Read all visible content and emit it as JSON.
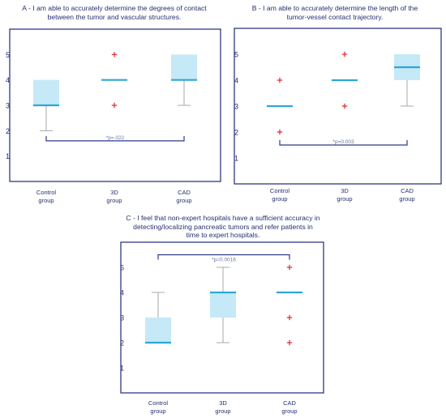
{
  "chart_data": [
    {
      "panel": "A",
      "type": "box",
      "title_lines": [
        "A - I am able to accurately determine the degrees of contact",
        "between the tumor and vascular structures."
      ],
      "categories": [
        [
          "Control",
          "group"
        ],
        [
          "3D",
          "group"
        ],
        [
          "CAD",
          "group"
        ]
      ],
      "boxes": [
        {
          "whisker_low": 2,
          "q1": 3,
          "median": 3,
          "q3": 4,
          "whisker_high": 4,
          "outliers": []
        },
        {
          "whisker_low": 4,
          "q1": 4,
          "median": 4,
          "q3": 4,
          "whisker_high": 4,
          "outliers": [
            5,
            3
          ]
        },
        {
          "whisker_low": 3,
          "q1": 4,
          "median": 4,
          "q3": 5,
          "whisker_high": 5,
          "outliers": []
        }
      ],
      "ylim": [
        0,
        6
      ],
      "yticks": [
        1,
        2,
        3,
        4,
        5
      ],
      "annotation": {
        "text": "*p=.022",
        "from": 0,
        "to": 2,
        "y": 1.6,
        "position": "below"
      },
      "colors": {
        "box": "#c5e9f7",
        "median": "#2ba8d8",
        "whisker": "#a8a8a8",
        "outlier": "#e03535",
        "frame": "#2c3a85",
        "bracket": "#2c3a85",
        "text": "#24306e"
      }
    },
    {
      "panel": "B",
      "type": "box",
      "title_lines": [
        "B - I am able to accurately determine the length of the",
        "tumor-vessel contact trajectory."
      ],
      "categories": [
        [
          "Control",
          "group"
        ],
        [
          "3D",
          "group"
        ],
        [
          "CAD",
          "group"
        ]
      ],
      "boxes": [
        {
          "whisker_low": 3,
          "q1": 3,
          "median": 3,
          "q3": 3,
          "whisker_high": 3,
          "outliers": [
            4,
            2
          ]
        },
        {
          "whisker_low": 4,
          "q1": 4,
          "median": 4,
          "q3": 4,
          "whisker_high": 4,
          "outliers": [
            5,
            3
          ]
        },
        {
          "whisker_low": 3,
          "q1": 4,
          "median": 4.5,
          "q3": 5,
          "whisker_high": 5,
          "outliers": []
        }
      ],
      "ylim": [
        0,
        6
      ],
      "yticks": [
        1,
        2,
        3,
        4,
        5
      ],
      "annotation": {
        "text": "*p=0.003",
        "from": 0,
        "to": 2,
        "y": 1.5,
        "position": "below"
      },
      "colors": {
        "box": "#c5e9f7",
        "median": "#2ba8d8",
        "whisker": "#a8a8a8",
        "outlier": "#e03535",
        "frame": "#2c3a85",
        "bracket": "#2c3a85",
        "text": "#24306e"
      }
    },
    {
      "panel": "C",
      "type": "box",
      "title_lines": [
        "C - I feel that non-expert hospitals have a sufficient accuracy in",
        "detecting/localizing pancreatic tumors and refer patients in",
        "time to expert hospitals."
      ],
      "categories": [
        [
          "Control",
          "group"
        ],
        [
          "3D",
          "group"
        ],
        [
          "CAD",
          "group"
        ]
      ],
      "boxes": [
        {
          "whisker_low": 2,
          "q1": 2,
          "median": 2,
          "q3": 3,
          "whisker_high": 4,
          "outliers": []
        },
        {
          "whisker_low": 2,
          "q1": 3,
          "median": 4,
          "q3": 4,
          "whisker_high": 5,
          "outliers": []
        },
        {
          "whisker_low": 4,
          "q1": 4,
          "median": 4,
          "q3": 4,
          "whisker_high": 4,
          "outliers": [
            5,
            3,
            2
          ]
        }
      ],
      "ylim": [
        0,
        6
      ],
      "yticks": [
        1,
        2,
        3,
        4,
        5
      ],
      "annotation": {
        "text": "*p=0.0016",
        "from": 0,
        "to": 2,
        "y": 5.5,
        "position": "above"
      },
      "colors": {
        "box": "#c5e9f7",
        "median": "#2ba8d8",
        "whisker": "#a8a8a8",
        "outlier": "#e03535",
        "frame": "#2c3a85",
        "bracket": "#2c3a85",
        "text": "#24306e"
      }
    }
  ]
}
